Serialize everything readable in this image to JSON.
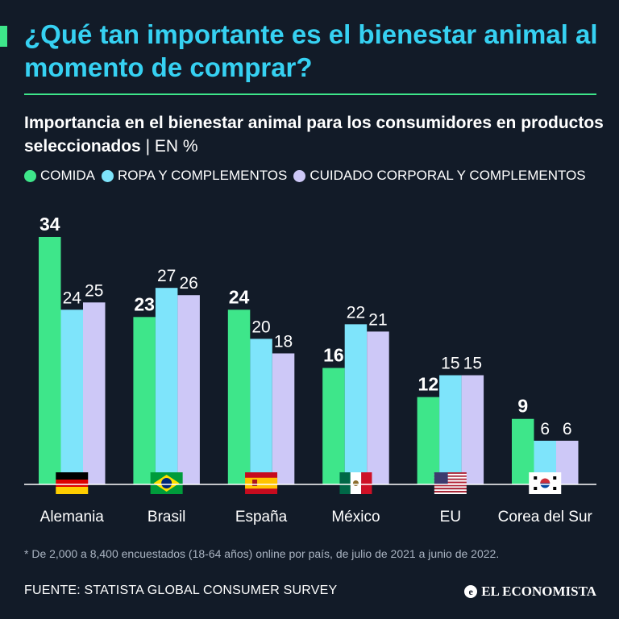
{
  "header": {
    "title": "¿Qué tan importante es el bienestar animal al momento de comprar?",
    "subtitle": "Importancia en el bienestar animal para los consumidores en productos seleccionados",
    "unit": "| EN %"
  },
  "colors": {
    "background": "#121b28",
    "title": "#36d1f2",
    "accent": "#3ee68a",
    "comida": "#3ee68a",
    "ropa": "#7ee4fb",
    "cuidado": "#cdc8f7"
  },
  "chart_data": {
    "type": "bar",
    "title": "Importancia en el bienestar animal para los consumidores en productos seleccionados",
    "unit": "%",
    "categories": [
      "Alemania",
      "Brasil",
      "España",
      "México",
      "EU",
      "Corea del Sur"
    ],
    "flags": [
      "germany-flag",
      "brazil-flag",
      "spain-flag",
      "mexico-flag",
      "usa-flag",
      "south-korea-flag"
    ],
    "series": [
      {
        "name": "COMIDA",
        "color": "#3ee68a",
        "values": [
          34,
          23,
          24,
          16,
          12,
          9
        ]
      },
      {
        "name": "ROPA Y COMPLEMENTOS",
        "color": "#7ee4fb",
        "values": [
          24,
          27,
          20,
          22,
          15,
          6
        ]
      },
      {
        "name": "CUIDADO CORPORAL Y COMPLEMENTOS",
        "color": "#cdc8f7",
        "values": [
          25,
          26,
          18,
          21,
          15,
          6
        ]
      }
    ],
    "ylim": [
      0,
      34
    ],
    "grid": false,
    "legend": "top-left"
  },
  "footnote": "* De 2,000 a 8,400 encuestados (18-64 años) online por país, de julio de 2021 a junio de 2022.",
  "source": "FUENTE: STATISTA GLOBAL CONSUMER SURVEY",
  "brand": {
    "name": "EL ECONOMISTA",
    "icon": "e-logo-icon",
    "icon_glyph": "e"
  }
}
